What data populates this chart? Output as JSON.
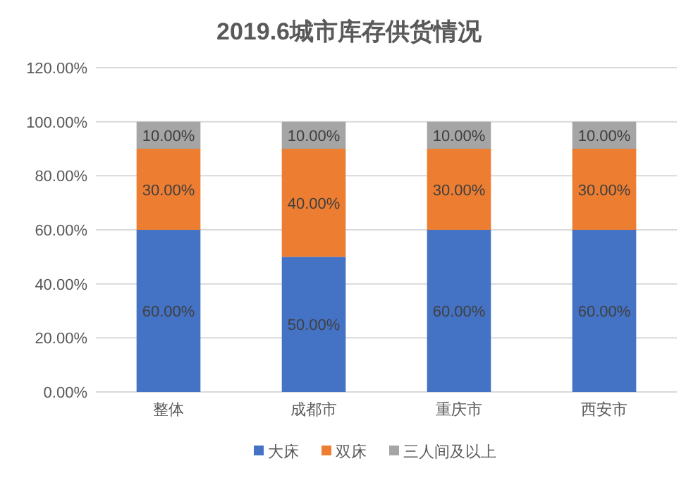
{
  "chart_data": {
    "type": "bar",
    "title": "2019.6城市库存供货情况",
    "stacked": true,
    "categories": [
      "整体",
      "成都市",
      "重庆市",
      "西安市"
    ],
    "series": [
      {
        "name": "大床",
        "color": "#4472c4",
        "values": [
          60,
          50,
          60,
          60
        ],
        "value_labels": [
          "60.00%",
          "50.00%",
          "60.00%",
          "60.00%"
        ]
      },
      {
        "name": "双床",
        "color": "#ed7d31",
        "values": [
          30,
          40,
          30,
          30
        ],
        "value_labels": [
          "30.00%",
          "40.00%",
          "30.00%",
          "30.00%"
        ]
      },
      {
        "name": "三人间及以上",
        "color": "#a5a5a5",
        "values": [
          10,
          10,
          10,
          10
        ],
        "value_labels": [
          "10.00%",
          "10.00%",
          "10.00%",
          "10.00%"
        ]
      }
    ],
    "ylim": [
      0,
      120
    ],
    "yticks": [
      {
        "value": 0,
        "label": "0.00%"
      },
      {
        "value": 20,
        "label": "20.00%"
      },
      {
        "value": 40,
        "label": "40.00%"
      },
      {
        "value": 60,
        "label": "60.00%"
      },
      {
        "value": 80,
        "label": "80.00%"
      },
      {
        "value": 100,
        "label": "100.00%"
      },
      {
        "value": 120,
        "label": "120.00%"
      }
    ],
    "grid": "y",
    "legend": "bottom"
  }
}
